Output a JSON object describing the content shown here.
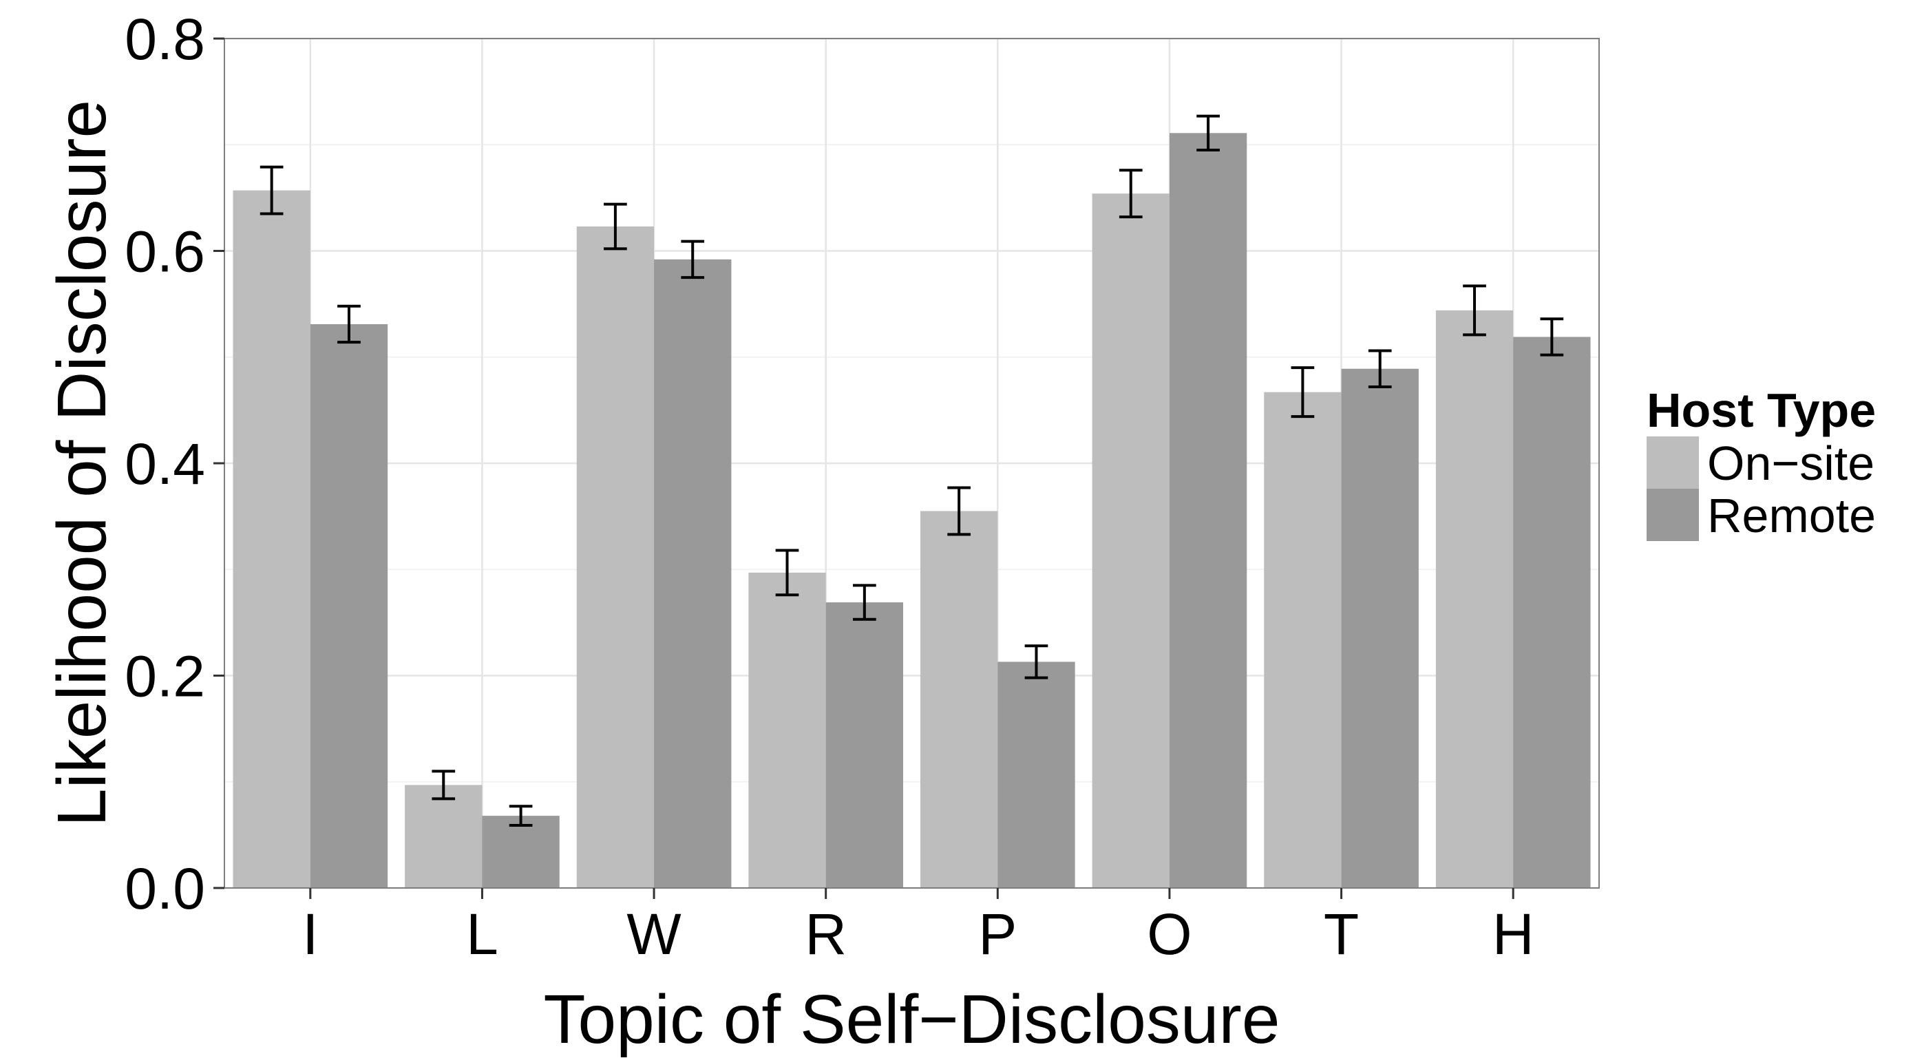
{
  "chart_data": {
    "type": "bar",
    "title": "",
    "xlabel": "Topic of Self−Disclosure",
    "ylabel": "Likelihood of Disclosure",
    "categories": [
      "I",
      "L",
      "W",
      "R",
      "P",
      "O",
      "T",
      "H"
    ],
    "ylim": [
      0,
      0.8
    ],
    "yticks": [
      "0.0",
      "0.2",
      "0.4",
      "0.6",
      "0.8"
    ],
    "grid": true,
    "legend": {
      "title": "Host Type",
      "position": "right"
    },
    "series": [
      {
        "name": "On−site",
        "color": "#bdbdbd",
        "values": [
          0.657,
          0.097,
          0.623,
          0.297,
          0.355,
          0.654,
          0.467,
          0.544
        ],
        "error": [
          0.022,
          0.013,
          0.021,
          0.021,
          0.022,
          0.022,
          0.023,
          0.023
        ]
      },
      {
        "name": "Remote",
        "color": "#999999",
        "values": [
          0.531,
          0.068,
          0.592,
          0.269,
          0.213,
          0.711,
          0.489,
          0.519
        ],
        "error": [
          0.017,
          0.009,
          0.017,
          0.016,
          0.015,
          0.016,
          0.017,
          0.017
        ]
      }
    ]
  }
}
